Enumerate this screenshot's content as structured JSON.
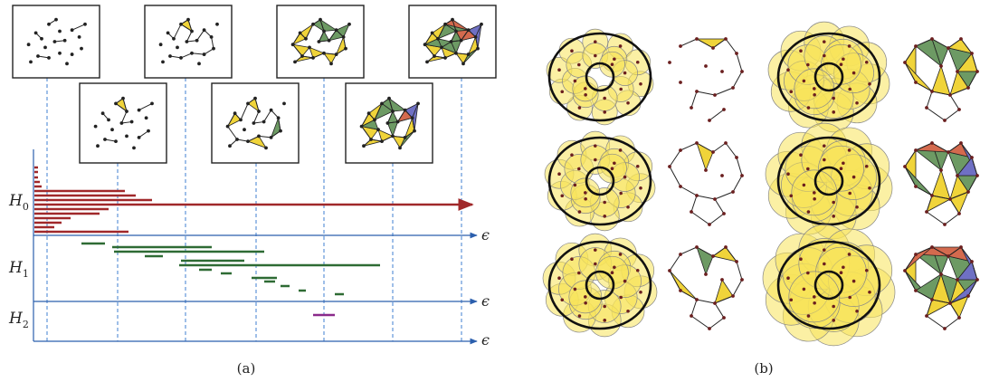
{
  "panel_a": {
    "caption": "(a)",
    "diagram_labels": [
      {
        "main": "H",
        "sub": "0"
      },
      {
        "main": "H",
        "sub": "1"
      },
      {
        "main": "H",
        "sub": "2"
      }
    ],
    "axis_symbol": "ϵ",
    "colors": {
      "h0_bars": "#a0282a",
      "h1_bars": "#2e6b34",
      "h2_bars": "#8a2a8a",
      "axis": "#2b5fad",
      "dashes": "#3f7fd0"
    },
    "h0_bars_count": 16,
    "h1_bars_count": 14,
    "h2_bars_count": 1
  },
  "panel_b": {
    "caption": "(b)",
    "colors": {
      "ball_fill": "#f7e35a",
      "triangle_yellow": "#f0d43a",
      "triangle_green": "#6d9a64",
      "triangle_red": "#d46a4e",
      "triangle_blue": "#6f70c4",
      "point": "#6b1f1f"
    }
  }
}
